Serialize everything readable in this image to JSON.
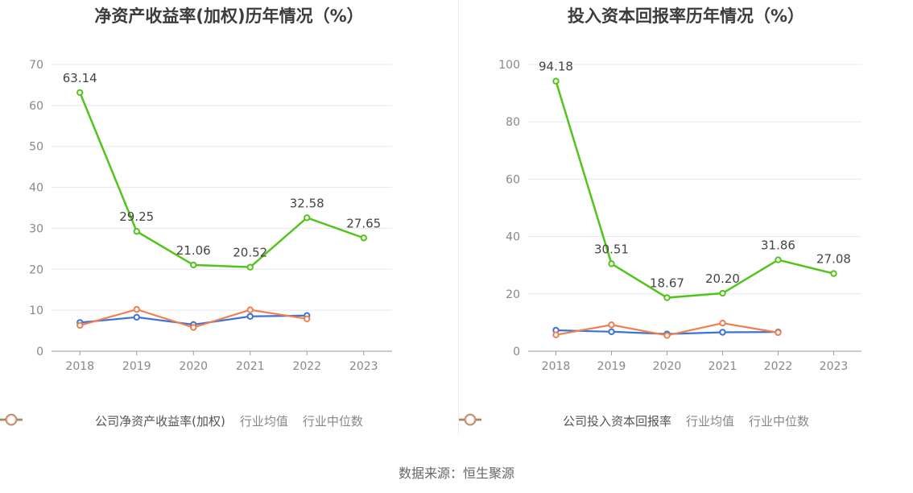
{
  "chart_data": [
    {
      "type": "line",
      "title": "净资产收益率(加权)历年情况（%）",
      "categories": [
        "2018",
        "2019",
        "2020",
        "2021",
        "2022",
        "2023"
      ],
      "ylim": [
        0,
        70
      ],
      "yticks": [
        "0",
        "10",
        "20",
        "30",
        "40",
        "50",
        "60",
        "70"
      ],
      "grid": true,
      "legend_position": "bottom",
      "series": [
        {
          "name": "公司净资产收益率(加权)",
          "color": "#52c41a",
          "values": [
            63.14,
            29.25,
            21.06,
            20.52,
            32.58,
            27.65
          ],
          "labels": [
            "63.14",
            "29.25",
            "21.06",
            "20.52",
            "32.58",
            "27.65"
          ]
        },
        {
          "name": "行业均值",
          "color": "#3b73d9",
          "values": [
            7.0,
            8.3,
            6.5,
            8.5,
            8.7,
            null
          ]
        },
        {
          "name": "行业中位数",
          "color": "#f07f50",
          "values": [
            6.3,
            10.2,
            5.8,
            10.1,
            7.9,
            null
          ]
        }
      ]
    },
    {
      "type": "line",
      "title": "投入资本回报率历年情况（%）",
      "categories": [
        "2018",
        "2019",
        "2020",
        "2021",
        "2022",
        "2023"
      ],
      "ylim": [
        0,
        100
      ],
      "yticks": [
        "0",
        "20",
        "40",
        "60",
        "80",
        "100"
      ],
      "grid": true,
      "legend_position": "bottom",
      "series": [
        {
          "name": "公司投入资本回报率",
          "color": "#52c41a",
          "values": [
            94.18,
            30.51,
            18.67,
            20.2,
            31.86,
            27.08
          ],
          "labels": [
            "94.18",
            "30.51",
            "18.67",
            "20.20",
            "31.86",
            "27.08"
          ]
        },
        {
          "name": "行业均值",
          "color": "#3b73d9",
          "values": [
            7.3,
            6.8,
            6.0,
            6.6,
            6.7,
            null
          ]
        },
        {
          "name": "行业中位数",
          "color": "#f07f50",
          "values": [
            5.7,
            9.2,
            5.5,
            9.8,
            6.5,
            null
          ]
        }
      ]
    }
  ],
  "footer": {
    "source": "数据来源：恒生聚源"
  }
}
